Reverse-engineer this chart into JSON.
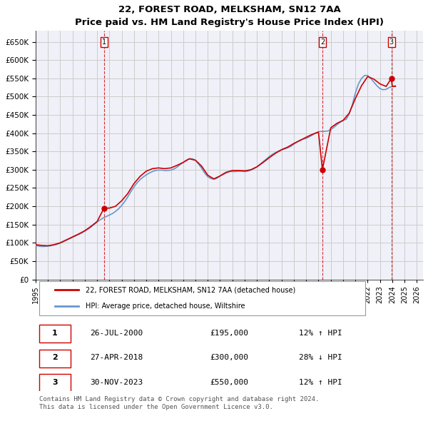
{
  "title": "22, FOREST ROAD, MELKSHAM, SN12 7AA",
  "subtitle": "Price paid vs. HM Land Registry's House Price Index (HPI)",
  "ylabel": "",
  "ylim": [
    0,
    680000
  ],
  "yticks": [
    0,
    50000,
    100000,
    150000,
    200000,
    250000,
    300000,
    350000,
    400000,
    450000,
    500000,
    550000,
    600000,
    650000
  ],
  "xlim_start": 1995.0,
  "xlim_end": 2026.5,
  "red_color": "#cc0000",
  "blue_color": "#6699cc",
  "grid_color": "#cccccc",
  "bg_color": "#ffffff",
  "legend_house": "22, FOREST ROAD, MELKSHAM, SN12 7AA (detached house)",
  "legend_hpi": "HPI: Average price, detached house, Wiltshire",
  "transactions": [
    {
      "num": 1,
      "date": "26-JUL-2000",
      "price": 195000,
      "pct": "12%",
      "dir": "↑",
      "year": 2000.57
    },
    {
      "num": 2,
      "date": "27-APR-2018",
      "price": 300000,
      "pct": "28%",
      "dir": "↓",
      "year": 2018.32
    },
    {
      "num": 3,
      "date": "30-NOV-2023",
      "price": 550000,
      "pct": "12%",
      "dir": "↑",
      "year": 2023.92
    }
  ],
  "footnote": "Contains HM Land Registry data © Crown copyright and database right 2024.\nThis data is licensed under the Open Government Licence v3.0.",
  "hpi_years": [
    1995.0,
    1995.25,
    1995.5,
    1995.75,
    1996.0,
    1996.25,
    1996.5,
    1996.75,
    1997.0,
    1997.25,
    1997.5,
    1997.75,
    1998.0,
    1998.25,
    1998.5,
    1998.75,
    1999.0,
    1999.25,
    1999.5,
    1999.75,
    2000.0,
    2000.25,
    2000.5,
    2000.75,
    2001.0,
    2001.25,
    2001.5,
    2001.75,
    2002.0,
    2002.25,
    2002.5,
    2002.75,
    2003.0,
    2003.25,
    2003.5,
    2003.75,
    2004.0,
    2004.25,
    2004.5,
    2004.75,
    2005.0,
    2005.25,
    2005.5,
    2005.75,
    2006.0,
    2006.25,
    2006.5,
    2006.75,
    2007.0,
    2007.25,
    2007.5,
    2007.75,
    2008.0,
    2008.25,
    2008.5,
    2008.75,
    2009.0,
    2009.25,
    2009.5,
    2009.75,
    2010.0,
    2010.25,
    2010.5,
    2010.75,
    2011.0,
    2011.25,
    2011.5,
    2011.75,
    2012.0,
    2012.25,
    2012.5,
    2012.75,
    2013.0,
    2013.25,
    2013.5,
    2013.75,
    2014.0,
    2014.25,
    2014.5,
    2014.75,
    2015.0,
    2015.25,
    2015.5,
    2015.75,
    2016.0,
    2016.25,
    2016.5,
    2016.75,
    2017.0,
    2017.25,
    2017.5,
    2017.75,
    2018.0,
    2018.25,
    2018.5,
    2018.75,
    2019.0,
    2019.25,
    2019.5,
    2019.75,
    2020.0,
    2020.25,
    2020.5,
    2020.75,
    2021.0,
    2021.25,
    2021.5,
    2021.75,
    2022.0,
    2022.25,
    2022.5,
    2022.75,
    2023.0,
    2023.25,
    2023.5,
    2023.75,
    2024.0,
    2024.25
  ],
  "hpi_values": [
    93000,
    91000,
    90000,
    90000,
    91000,
    92000,
    94000,
    96000,
    99000,
    103000,
    107000,
    111000,
    115000,
    119000,
    123000,
    127000,
    132000,
    137000,
    143000,
    150000,
    157000,
    163000,
    168000,
    172000,
    176000,
    180000,
    186000,
    193000,
    202000,
    213000,
    226000,
    240000,
    253000,
    264000,
    273000,
    280000,
    286000,
    291000,
    295000,
    298000,
    299000,
    299000,
    298000,
    298000,
    299000,
    302000,
    307000,
    314000,
    320000,
    326000,
    330000,
    330000,
    326000,
    316000,
    304000,
    291000,
    281000,
    276000,
    274000,
    277000,
    283000,
    289000,
    294000,
    296000,
    295000,
    295000,
    296000,
    296000,
    295000,
    296000,
    299000,
    303000,
    308000,
    315000,
    322000,
    329000,
    336000,
    342000,
    347000,
    351000,
    354000,
    357000,
    360000,
    364000,
    370000,
    376000,
    381000,
    384000,
    386000,
    390000,
    395000,
    400000,
    404000,
    405000,
    405000,
    406000,
    410000,
    416000,
    423000,
    430000,
    435000,
    438000,
    453000,
    478000,
    510000,
    535000,
    550000,
    558000,
    558000,
    550000,
    540000,
    530000,
    522000,
    519000,
    520000,
    525000,
    528000,
    530000
  ],
  "red_years": [
    1995.0,
    1995.5,
    1996.0,
    1996.5,
    1997.0,
    1997.5,
    1998.0,
    1998.5,
    1999.0,
    1999.5,
    2000.0,
    2000.57,
    2001.0,
    2001.5,
    2002.0,
    2002.5,
    2003.0,
    2003.5,
    2004.0,
    2004.5,
    2005.0,
    2005.5,
    2006.0,
    2006.5,
    2007.0,
    2007.5,
    2008.0,
    2008.5,
    2009.0,
    2009.5,
    2010.0,
    2010.5,
    2011.0,
    2011.5,
    2012.0,
    2012.5,
    2013.0,
    2013.5,
    2014.0,
    2014.5,
    2015.0,
    2015.5,
    2016.0,
    2016.5,
    2017.0,
    2017.5,
    2018.0,
    2018.32,
    2019.0,
    2019.5,
    2020.0,
    2020.5,
    2021.0,
    2021.5,
    2022.0,
    2022.5,
    2023.0,
    2023.5,
    2023.92,
    2024.0,
    2024.25
  ],
  "red_values": [
    95000,
    93000,
    92000,
    95000,
    100000,
    108000,
    116000,
    124000,
    133000,
    145000,
    158000,
    195000,
    195000,
    200000,
    215000,
    235000,
    262000,
    282000,
    296000,
    303000,
    305000,
    303000,
    305000,
    312000,
    320000,
    330000,
    326000,
    310000,
    285000,
    275000,
    283000,
    292000,
    298000,
    298000,
    297000,
    300000,
    308000,
    320000,
    333000,
    345000,
    355000,
    362000,
    372000,
    380000,
    389000,
    397000,
    403000,
    300000,
    415000,
    427000,
    435000,
    455000,
    495000,
    530000,
    555000,
    548000,
    535000,
    528000,
    550000,
    528000,
    528000
  ]
}
